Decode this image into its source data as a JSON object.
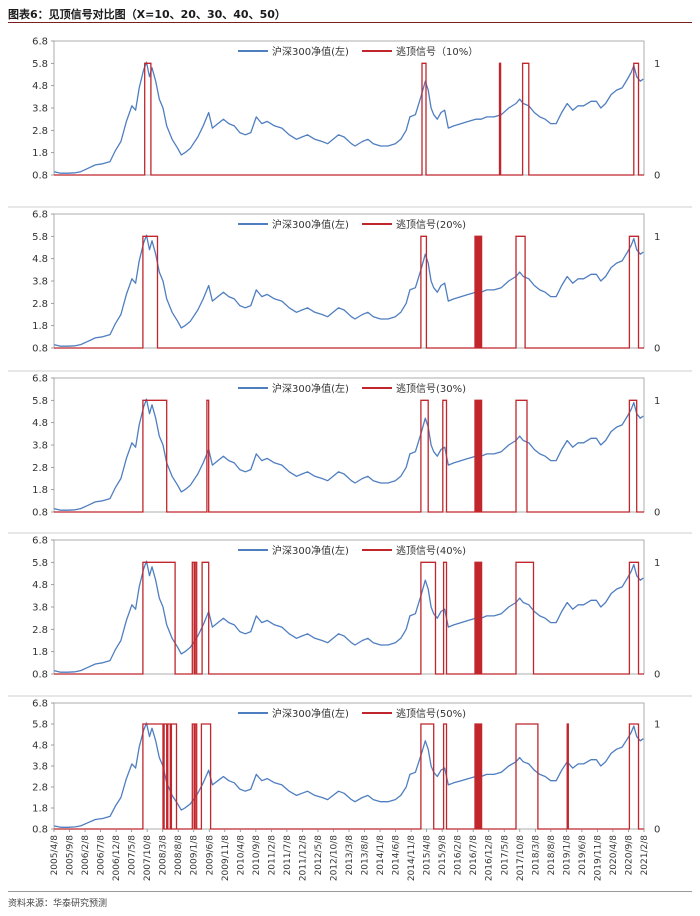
{
  "figure_title": "图表6：见顶信号对比图（X=10、20、30、40、50）",
  "source_label": "资料来源：华泰研究预测",
  "colors": {
    "nav": "#4f7ec0",
    "signal": "#c0262c",
    "axis": "#888888",
    "frame": "#9a9a9a"
  },
  "chart_data": [
    {
      "type": "line",
      "title": "",
      "series": [
        {
          "name": "沪深300净值(左)",
          "axis": "left"
        },
        {
          "name": "逃顶信号（10%）",
          "axis": "right"
        }
      ],
      "left_ticks": [
        "6.8",
        "5.8",
        "4.8",
        "3.8",
        "2.8",
        "1.8",
        "0.8"
      ],
      "left_ylim": [
        0.8,
        6.8
      ],
      "right_ticks": [
        "1",
        "0"
      ],
      "right_ylim": [
        0,
        1
      ],
      "x_ticks": [],
      "signal_on_periods": [
        [
          2007.75,
          2007.92
        ],
        [
          2015.33,
          2015.44
        ],
        [
          2017.45,
          2017.48
        ],
        [
          2018.08,
          2018.25
        ],
        [
          2021.12,
          2021.25
        ]
      ]
    },
    {
      "type": "line",
      "title": "",
      "series": [
        {
          "name": "沪深300净值(左)",
          "axis": "left"
        },
        {
          "name": "逃顶信号(20%)",
          "axis": "right"
        }
      ],
      "left_ticks": [
        "6.8",
        "5.8",
        "4.8",
        "3.8",
        "2.8",
        "1.8",
        "0.8"
      ],
      "left_ylim": [
        0.8,
        6.8
      ],
      "right_ticks": [
        "1",
        "0"
      ],
      "right_ylim": [
        0,
        1
      ],
      "x_ticks": [],
      "signal_on_periods": [
        [
          2007.7,
          2008.1
        ],
        [
          2015.3,
          2015.45
        ],
        [
          2016.78,
          2016.81
        ],
        [
          2016.83,
          2016.86
        ],
        [
          2016.88,
          2016.91
        ],
        [
          2016.93,
          2016.96
        ],
        [
          2017.9,
          2018.15
        ],
        [
          2021.0,
          2021.25
        ]
      ]
    },
    {
      "type": "line",
      "title": "",
      "series": [
        {
          "name": "沪深300净值(左)",
          "axis": "left"
        },
        {
          "name": "逃顶信号(30%)",
          "axis": "right"
        }
      ],
      "left_ticks": [
        "6.8",
        "5.8",
        "4.8",
        "3.8",
        "2.8",
        "1.8",
        "0.8"
      ],
      "left_ylim": [
        0.8,
        6.8
      ],
      "right_ticks": [
        "1",
        "0"
      ],
      "right_ylim": [
        0,
        1
      ],
      "x_ticks": [],
      "signal_on_periods": [
        [
          2007.7,
          2008.35
        ],
        [
          2009.45,
          2009.5
        ],
        [
          2015.3,
          2015.5
        ],
        [
          2015.9,
          2016.0
        ],
        [
          2016.78,
          2016.81
        ],
        [
          2016.83,
          2016.86
        ],
        [
          2016.88,
          2016.91
        ],
        [
          2016.93,
          2016.96
        ],
        [
          2017.9,
          2018.2
        ],
        [
          2021.0,
          2021.2
        ]
      ]
    },
    {
      "type": "line",
      "title": "",
      "series": [
        {
          "name": "沪深300净值(左)",
          "axis": "left"
        },
        {
          "name": "逃顶信号(40%)",
          "axis": "right"
        }
      ],
      "left_ticks": [
        "6.8",
        "5.8",
        "4.8",
        "3.8",
        "2.8",
        "1.8",
        "0.8"
      ],
      "left_ylim": [
        0.8,
        6.8
      ],
      "right_ticks": [
        "1",
        "0"
      ],
      "right_ylim": [
        0,
        1
      ],
      "x_ticks": [],
      "signal_on_periods": [
        [
          2007.7,
          2008.58
        ],
        [
          2009.05,
          2009.1
        ],
        [
          2009.13,
          2009.17
        ],
        [
          2009.32,
          2009.5
        ],
        [
          2015.3,
          2015.7
        ],
        [
          2015.92,
          2016.0
        ],
        [
          2016.78,
          2016.81
        ],
        [
          2016.83,
          2016.86
        ],
        [
          2016.88,
          2016.91
        ],
        [
          2016.93,
          2016.96
        ],
        [
          2017.9,
          2018.38
        ],
        [
          2021.0,
          2021.25
        ]
      ]
    },
    {
      "type": "line",
      "title": "",
      "series": [
        {
          "name": "沪深300净值(左)",
          "axis": "left"
        },
        {
          "name": "逃顶信号(50%)",
          "axis": "right"
        }
      ],
      "left_ticks": [
        "6.8",
        "5.8",
        "4.8",
        "3.8",
        "2.8",
        "1.8",
        "0.8"
      ],
      "left_ylim": [
        0.8,
        6.8
      ],
      "right_ticks": [
        "1",
        "0"
      ],
      "right_ylim": [
        0,
        1
      ],
      "x_ticks": [
        "2005/4/8",
        "2005/9/8",
        "2006/2/8",
        "2006/7/8",
        "2006/12/8",
        "2007/5/8",
        "2007/10/8",
        "2008/3/8",
        "2008/8/8",
        "2009/1/8",
        "2009/6/8",
        "2009/11/8",
        "2010/4/8",
        "2010/9/8",
        "2011/2/8",
        "2011/7/8",
        "2011/12/8",
        "2012/5/8",
        "2012/10/8",
        "2013/3/8",
        "2013/8/8",
        "2014/1/8",
        "2014/6/8",
        "2014/11/8",
        "2015/4/8",
        "2015/9/8",
        "2016/2/8",
        "2016/7/8",
        "2016/12/8",
        "2017/5/8",
        "2017/10/8",
        "2018/3/8",
        "2018/8/8",
        "2019/1/8",
        "2019/6/8",
        "2019/11/8",
        "2020/4/8",
        "2020/9/8",
        "2021/2/8"
      ],
      "signal_on_periods": [
        [
          2007.7,
          2008.62
        ],
        [
          2008.25,
          2008.28
        ],
        [
          2008.35,
          2008.38
        ],
        [
          2008.45,
          2008.48
        ],
        [
          2009.05,
          2009.1
        ],
        [
          2009.13,
          2009.17
        ],
        [
          2009.3,
          2009.55
        ],
        [
          2015.3,
          2015.65
        ],
        [
          2015.92,
          2016.0
        ],
        [
          2016.78,
          2016.81
        ],
        [
          2016.83,
          2016.86
        ],
        [
          2016.88,
          2016.91
        ],
        [
          2016.93,
          2016.96
        ],
        [
          2017.9,
          2018.5
        ],
        [
          2019.3,
          2019.33
        ],
        [
          2021.0,
          2021.25
        ]
      ]
    }
  ],
  "nav_series": {
    "x_range": [
      2005.27,
      2021.4
    ],
    "points": [
      [
        2005.27,
        0.95
      ],
      [
        2005.45,
        0.88
      ],
      [
        2005.65,
        0.88
      ],
      [
        2005.85,
        0.9
      ],
      [
        2006.0,
        0.95
      ],
      [
        2006.2,
        1.1
      ],
      [
        2006.4,
        1.25
      ],
      [
        2006.6,
        1.3
      ],
      [
        2006.8,
        1.4
      ],
      [
        2006.95,
        1.9
      ],
      [
        2007.1,
        2.3
      ],
      [
        2007.25,
        3.2
      ],
      [
        2007.4,
        3.9
      ],
      [
        2007.5,
        3.7
      ],
      [
        2007.6,
        4.7
      ],
      [
        2007.72,
        5.5
      ],
      [
        2007.8,
        5.85
      ],
      [
        2007.88,
        5.2
      ],
      [
        2007.95,
        5.6
      ],
      [
        2008.05,
        5.0
      ],
      [
        2008.15,
        4.2
      ],
      [
        2008.25,
        3.8
      ],
      [
        2008.35,
        3.0
      ],
      [
        2008.5,
        2.4
      ],
      [
        2008.65,
        2.0
      ],
      [
        2008.75,
        1.7
      ],
      [
        2008.85,
        1.8
      ],
      [
        2009.0,
        2.0
      ],
      [
        2009.2,
        2.5
      ],
      [
        2009.35,
        3.0
      ],
      [
        2009.5,
        3.6
      ],
      [
        2009.6,
        2.9
      ],
      [
        2009.75,
        3.1
      ],
      [
        2009.9,
        3.3
      ],
      [
        2010.05,
        3.1
      ],
      [
        2010.2,
        3.0
      ],
      [
        2010.35,
        2.7
      ],
      [
        2010.5,
        2.6
      ],
      [
        2010.65,
        2.7
      ],
      [
        2010.8,
        3.4
      ],
      [
        2010.95,
        3.1
      ],
      [
        2011.1,
        3.2
      ],
      [
        2011.3,
        3.0
      ],
      [
        2011.5,
        2.9
      ],
      [
        2011.7,
        2.6
      ],
      [
        2011.9,
        2.4
      ],
      [
        2012.05,
        2.5
      ],
      [
        2012.2,
        2.6
      ],
      [
        2012.4,
        2.4
      ],
      [
        2012.6,
        2.3
      ],
      [
        2012.75,
        2.2
      ],
      [
        2012.9,
        2.4
      ],
      [
        2013.05,
        2.6
      ],
      [
        2013.2,
        2.5
      ],
      [
        2013.4,
        2.2
      ],
      [
        2013.5,
        2.1
      ],
      [
        2013.7,
        2.3
      ],
      [
        2013.85,
        2.4
      ],
      [
        2014.0,
        2.2
      ],
      [
        2014.2,
        2.1
      ],
      [
        2014.4,
        2.1
      ],
      [
        2014.6,
        2.2
      ],
      [
        2014.75,
        2.4
      ],
      [
        2014.9,
        2.8
      ],
      [
        2015.0,
        3.4
      ],
      [
        2015.15,
        3.5
      ],
      [
        2015.3,
        4.3
      ],
      [
        2015.42,
        5.0
      ],
      [
        2015.5,
        4.6
      ],
      [
        2015.58,
        3.8
      ],
      [
        2015.65,
        3.5
      ],
      [
        2015.75,
        3.3
      ],
      [
        2015.85,
        3.6
      ],
      [
        2015.95,
        3.7
      ],
      [
        2016.05,
        2.9
      ],
      [
        2016.2,
        3.0
      ],
      [
        2016.4,
        3.1
      ],
      [
        2016.6,
        3.2
      ],
      [
        2016.8,
        3.3
      ],
      [
        2016.95,
        3.3
      ],
      [
        2017.1,
        3.4
      ],
      [
        2017.3,
        3.4
      ],
      [
        2017.5,
        3.5
      ],
      [
        2017.7,
        3.8
      ],
      [
        2017.9,
        4.0
      ],
      [
        2018.0,
        4.2
      ],
      [
        2018.1,
        4.0
      ],
      [
        2018.25,
        3.9
      ],
      [
        2018.4,
        3.6
      ],
      [
        2018.55,
        3.4
      ],
      [
        2018.7,
        3.3
      ],
      [
        2018.85,
        3.1
      ],
      [
        2019.0,
        3.1
      ],
      [
        2019.15,
        3.6
      ],
      [
        2019.3,
        4.0
      ],
      [
        2019.45,
        3.7
      ],
      [
        2019.6,
        3.9
      ],
      [
        2019.75,
        3.9
      ],
      [
        2019.95,
        4.1
      ],
      [
        2020.1,
        4.1
      ],
      [
        2020.22,
        3.8
      ],
      [
        2020.35,
        4.0
      ],
      [
        2020.5,
        4.4
      ],
      [
        2020.65,
        4.6
      ],
      [
        2020.8,
        4.7
      ],
      [
        2020.95,
        5.1
      ],
      [
        2021.05,
        5.4
      ],
      [
        2021.12,
        5.7
      ],
      [
        2021.2,
        5.2
      ],
      [
        2021.3,
        5.0
      ],
      [
        2021.38,
        5.1
      ]
    ]
  }
}
